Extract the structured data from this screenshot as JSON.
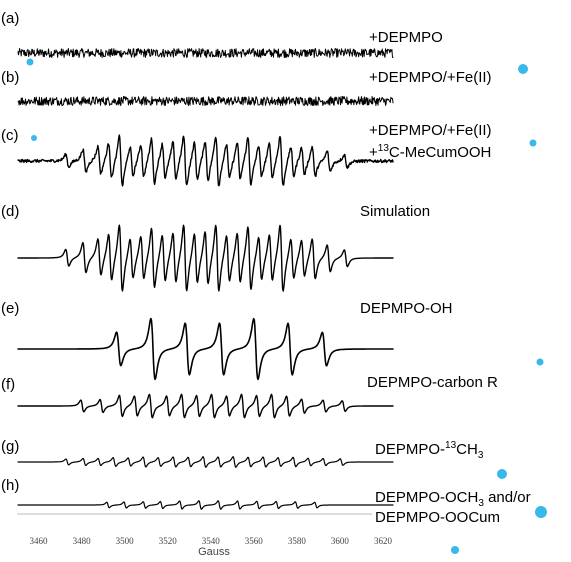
{
  "chart_data": {
    "type": "line",
    "xlabel": "Gauss",
    "x_ticks": [
      3460,
      3480,
      3500,
      3520,
      3540,
      3560,
      3580,
      3600,
      3620
    ],
    "xlim": [
      3455,
      3630
    ],
    "traces": [
      {
        "letter": "(a)",
        "label": [
          "+DEPMPO"
        ],
        "kind": "noise",
        "noise_amp": 1.0
      },
      {
        "letter": "(b)",
        "label": [
          "+DEPMPO/+Fe(II)"
        ],
        "kind": "noise",
        "noise_amp": 1.0
      },
      {
        "letter": "(c)",
        "label": [
          "+DEPMPO/+Fe(II)",
          "+13C-MeCumOOH"
        ],
        "kind": "composite",
        "noise_amp": 0.05,
        "lines": [
          {
            "center": 3478,
            "amp": 0.25
          },
          {
            "center": 3486,
            "amp": 0.45
          },
          {
            "center": 3493,
            "amp": 0.55
          },
          {
            "center": 3498,
            "amp": 0.7
          },
          {
            "center": 3503,
            "amp": 1.0
          },
          {
            "center": 3508,
            "amp": 0.6
          },
          {
            "center": 3513,
            "amp": 0.65
          },
          {
            "center": 3518,
            "amp": 0.9
          },
          {
            "center": 3523,
            "amp": 0.7
          },
          {
            "center": 3528,
            "amp": 0.75
          },
          {
            "center": 3533,
            "amp": 1.0
          },
          {
            "center": 3538,
            "amp": 0.75
          },
          {
            "center": 3543,
            "amp": 0.8
          },
          {
            "center": 3548,
            "amp": 1.0
          },
          {
            "center": 3553,
            "amp": 0.7
          },
          {
            "center": 3558,
            "amp": 0.75
          },
          {
            "center": 3563,
            "amp": 0.95
          },
          {
            "center": 3568,
            "amp": 0.65
          },
          {
            "center": 3573,
            "amp": 0.7
          },
          {
            "center": 3578,
            "amp": 1.0
          },
          {
            "center": 3583,
            "amp": 0.6
          },
          {
            "center": 3588,
            "amp": 0.55
          },
          {
            "center": 3593,
            "amp": 0.6
          },
          {
            "center": 3600,
            "amp": 0.4
          },
          {
            "center": 3608,
            "amp": 0.25
          }
        ]
      },
      {
        "letter": "(d)",
        "label": [
          "Simulation"
        ],
        "kind": "composite",
        "noise_amp": 0.0,
        "lines": [
          {
            "center": 3478,
            "amp": 0.25
          },
          {
            "center": 3486,
            "amp": 0.45
          },
          {
            "center": 3493,
            "amp": 0.55
          },
          {
            "center": 3498,
            "amp": 0.7
          },
          {
            "center": 3503,
            "amp": 1.0
          },
          {
            "center": 3508,
            "amp": 0.6
          },
          {
            "center": 3513,
            "amp": 0.65
          },
          {
            "center": 3518,
            "amp": 0.9
          },
          {
            "center": 3523,
            "amp": 0.7
          },
          {
            "center": 3528,
            "amp": 0.75
          },
          {
            "center": 3533,
            "amp": 1.0
          },
          {
            "center": 3538,
            "amp": 0.75
          },
          {
            "center": 3543,
            "amp": 0.8
          },
          {
            "center": 3548,
            "amp": 1.0
          },
          {
            "center": 3553,
            "amp": 0.7
          },
          {
            "center": 3558,
            "amp": 0.75
          },
          {
            "center": 3563,
            "amp": 0.95
          },
          {
            "center": 3568,
            "amp": 0.65
          },
          {
            "center": 3573,
            "amp": 0.7
          },
          {
            "center": 3578,
            "amp": 1.0
          },
          {
            "center": 3583,
            "amp": 0.6
          },
          {
            "center": 3588,
            "amp": 0.55
          },
          {
            "center": 3593,
            "amp": 0.6
          },
          {
            "center": 3600,
            "amp": 0.4
          },
          {
            "center": 3608,
            "amp": 0.25
          }
        ]
      },
      {
        "letter": "(e)",
        "label": [
          "DEPMPO-OH"
        ],
        "kind": "composite",
        "noise_amp": 0.0,
        "lines": [
          {
            "center": 3502,
            "amp": 0.55
          },
          {
            "center": 3518,
            "amp": 1.0
          },
          {
            "center": 3534,
            "amp": 0.85
          },
          {
            "center": 3550,
            "amp": 0.85
          },
          {
            "center": 3566,
            "amp": 1.0
          },
          {
            "center": 3582,
            "amp": 0.85
          },
          {
            "center": 3598,
            "amp": 0.55
          }
        ]
      },
      {
        "letter": "(f)",
        "label": [
          "DEPMPO-carbon R"
        ],
        "kind": "composite",
        "noise_amp": 0.0,
        "lines": [
          {
            "center": 3485,
            "amp": 0.5
          },
          {
            "center": 3494,
            "amp": 0.55
          },
          {
            "center": 3503,
            "amp": 0.9
          },
          {
            "center": 3510,
            "amp": 0.85
          },
          {
            "center": 3517,
            "amp": 1.0
          },
          {
            "center": 3525,
            "amp": 0.85
          },
          {
            "center": 3532,
            "amp": 1.0
          },
          {
            "center": 3539,
            "amp": 0.9
          },
          {
            "center": 3546,
            "amp": 1.0
          },
          {
            "center": 3553,
            "amp": 0.85
          },
          {
            "center": 3560,
            "amp": 1.0
          },
          {
            "center": 3567,
            "amp": 0.9
          },
          {
            "center": 3574,
            "amp": 1.0
          },
          {
            "center": 3581,
            "amp": 0.85
          },
          {
            "center": 3588,
            "amp": 0.6
          },
          {
            "center": 3598,
            "amp": 0.5
          },
          {
            "center": 3607,
            "amp": 0.45
          }
        ]
      },
      {
        "letter": "(g)",
        "label": [
          "DEPMPO-13CH3"
        ],
        "kind": "composite",
        "noise_amp": 0.0,
        "lines": [
          {
            "center": 3478,
            "amp": 0.5
          },
          {
            "center": 3486,
            "amp": 0.6
          },
          {
            "center": 3493,
            "amp": 0.6
          },
          {
            "center": 3500,
            "amp": 0.75
          },
          {
            "center": 3507,
            "amp": 0.7
          },
          {
            "center": 3514,
            "amp": 0.85
          },
          {
            "center": 3521,
            "amp": 0.75
          },
          {
            "center": 3528,
            "amp": 0.85
          },
          {
            "center": 3535,
            "amp": 0.8
          },
          {
            "center": 3542,
            "amp": 0.9
          },
          {
            "center": 3549,
            "amp": 0.85
          },
          {
            "center": 3556,
            "amp": 0.9
          },
          {
            "center": 3563,
            "amp": 0.8
          },
          {
            "center": 3570,
            "amp": 0.85
          },
          {
            "center": 3577,
            "amp": 0.75
          },
          {
            "center": 3584,
            "amp": 0.8
          },
          {
            "center": 3591,
            "amp": 0.65
          },
          {
            "center": 3598,
            "amp": 0.6
          },
          {
            "center": 3606,
            "amp": 0.55
          }
        ]
      },
      {
        "letter": "(h)",
        "label": [
          "DEPMPO-OCH3 and/or",
          "DEPMPO-OOCum"
        ],
        "kind": "composite",
        "noise_amp": 0.0,
        "lines": [
          {
            "center": 3497,
            "amp": 0.55
          },
          {
            "center": 3505,
            "amp": 0.6
          },
          {
            "center": 3514,
            "amp": 0.65
          },
          {
            "center": 3522,
            "amp": 0.7
          },
          {
            "center": 3531,
            "amp": 0.8
          },
          {
            "center": 3540,
            "amp": 0.85
          },
          {
            "center": 3549,
            "amp": 0.85
          },
          {
            "center": 3558,
            "amp": 0.8
          },
          {
            "center": 3567,
            "amp": 0.75
          },
          {
            "center": 3576,
            "amp": 0.7
          },
          {
            "center": 3585,
            "amp": 0.65
          },
          {
            "center": 3594,
            "amp": 0.55
          }
        ]
      }
    ]
  },
  "decor": {
    "dot_color": "#39b8ea"
  }
}
